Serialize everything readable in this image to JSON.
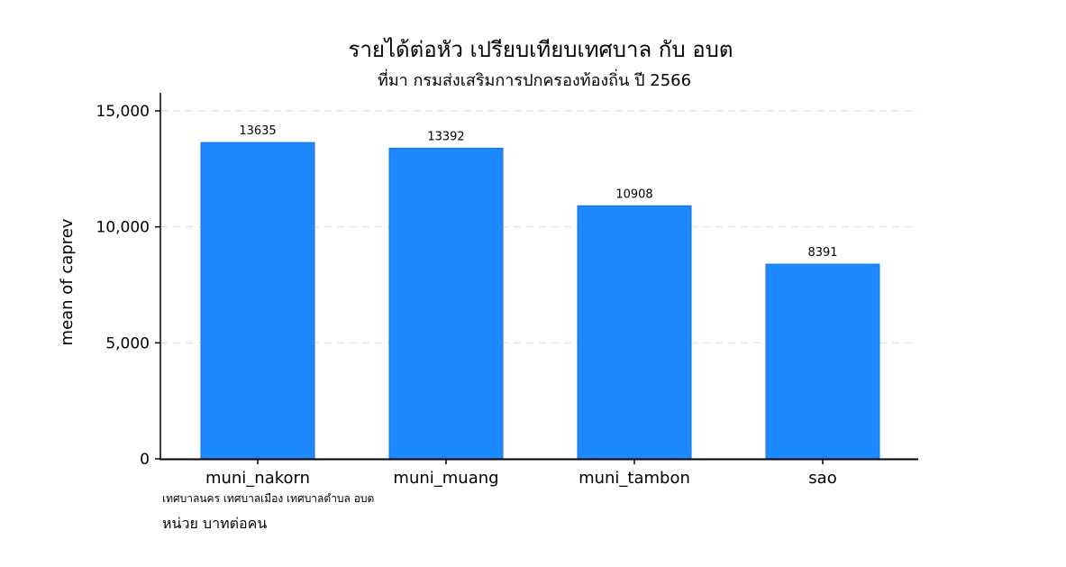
{
  "chart_data": {
    "type": "bar",
    "title": "รายได้ต่อหัว เปรียบเทียบเทศบาล กับ อบต",
    "subtitle": "ที่มา กรมส่งเสริมการปกครองท้องถิ่น ปี 2566",
    "categories": [
      "muni_nakorn",
      "muni_muang",
      "muni_tambon",
      "sao"
    ],
    "values": [
      13635,
      13392,
      10908,
      8391
    ],
    "data_labels": [
      "13635",
      "13392",
      "10908",
      "8391"
    ],
    "ylabel": "mean of caprev",
    "xlabel": "",
    "ylim": [
      0,
      15000
    ],
    "yticks": [
      0,
      5000,
      10000,
      15000
    ],
    "ytick_labels": [
      "0",
      "5,000",
      "10,000",
      "15,000"
    ],
    "grid": true,
    "bar_color": "#1E88FF",
    "notes": [
      "เทศบาลนคร เทศบาลเมือง เทศบาลตำบล อบต",
      "หน่วย บาทต่อคน"
    ]
  }
}
